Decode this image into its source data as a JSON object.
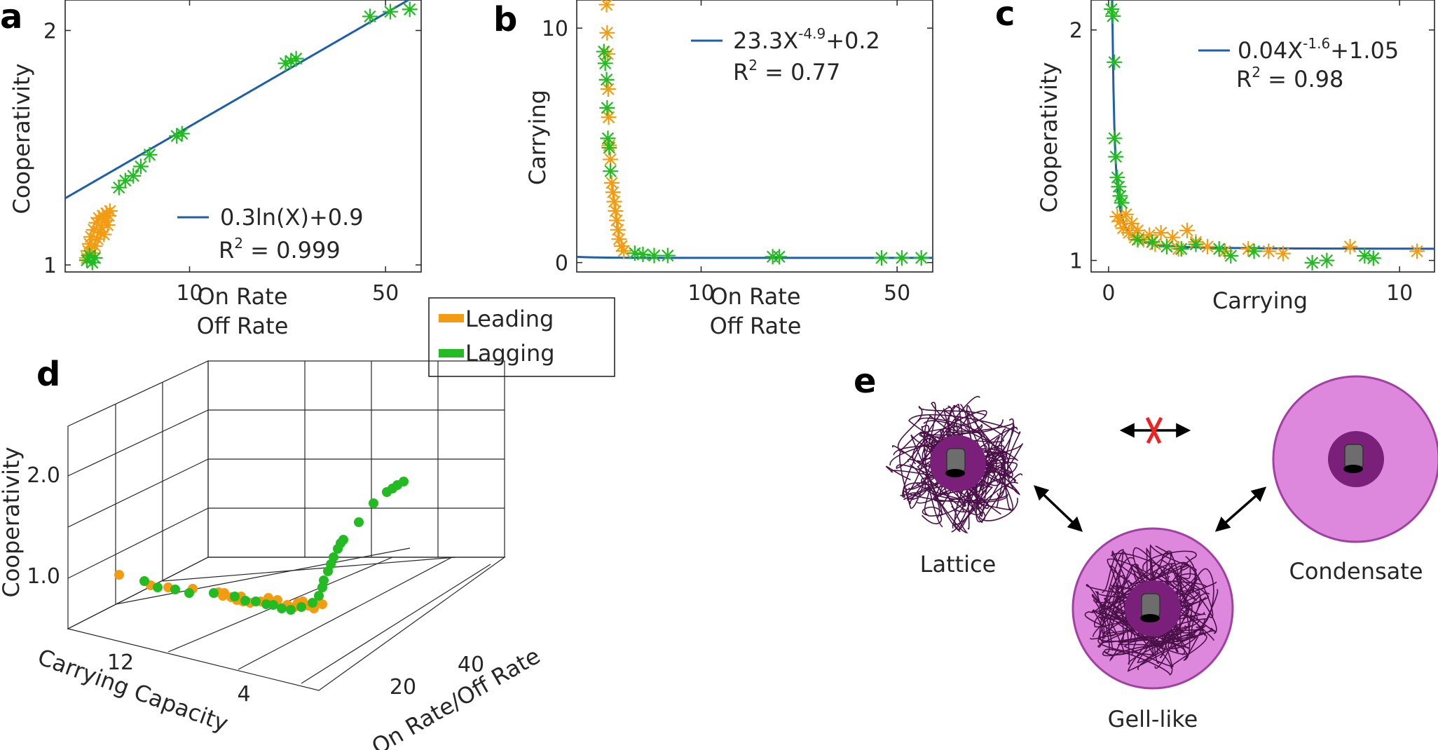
{
  "panels": {
    "a": "a",
    "b": "b",
    "c": "c",
    "d": "d",
    "e": "e"
  },
  "colors": {
    "leading": "#f39c12",
    "lagging": "#22bb22",
    "fit": "#1f5fa8",
    "purple_dark": "#7a1f7a",
    "purple_light": "#dd88dd",
    "red_x": "#ee2222"
  },
  "legend": {
    "leading_label": "Leading",
    "lagging_label": "Lagging"
  },
  "chart_data": [
    {
      "id": "a",
      "type": "scatter",
      "xlabel_line1": "On Rate",
      "xlabel_line2": "Off Rate",
      "ylabel": "Cooperativity",
      "xscale": "log",
      "xlim": [
        3.6,
        67
      ],
      "ylim": [
        0.97,
        2.13
      ],
      "xticks": [
        {
          "v": 10,
          "label": "10"
        },
        {
          "v": 50,
          "label": "50"
        }
      ],
      "yticks": [
        {
          "v": 1,
          "label": "1"
        },
        {
          "v": 2,
          "label": "2"
        }
      ],
      "fit_label": "0.3ln(X)+0.9",
      "r2_label": "R",
      "r2_sup": "2",
      "r2_value": " = 0.999",
      "fit": {
        "kind": "log",
        "a": 0.3,
        "b": 0.9
      },
      "leading": {
        "x": [
          4.3,
          4.35,
          4.4,
          4.45,
          4.5,
          4.55,
          4.6,
          4.65,
          4.7,
          4.75,
          4.8,
          4.85,
          4.9,
          4.95,
          5.0,
          5.05,
          5.1,
          5.15,
          5.2
        ],
        "y": [
          1.03,
          1.06,
          1.09,
          1.12,
          1.05,
          1.15,
          1.08,
          1.18,
          1.11,
          1.2,
          1.14,
          1.16,
          1.21,
          1.13,
          1.19,
          1.22,
          1.17,
          1.21,
          1.23
        ]
      },
      "lagging": {
        "x": [
          4.3,
          4.4,
          4.5,
          4.6,
          5.6,
          5.9,
          6.3,
          6.7,
          7.2,
          9.0,
          9.4,
          22,
          23,
          24,
          44,
          52,
          61
        ],
        "y": [
          1.02,
          1.04,
          1.01,
          1.03,
          1.33,
          1.36,
          1.38,
          1.42,
          1.47,
          1.55,
          1.56,
          1.86,
          1.87,
          1.88,
          2.06,
          2.08,
          2.09
        ]
      }
    },
    {
      "id": "b",
      "type": "scatter",
      "xlabel_line1": "On Rate",
      "xlabel_line2": "Off Rate",
      "ylabel": "Carrying",
      "xscale": "log",
      "xlim": [
        3.6,
        67
      ],
      "ylim": [
        -0.4,
        11.2
      ],
      "xticks": [
        {
          "v": 10,
          "label": "10"
        },
        {
          "v": 50,
          "label": "50"
        }
      ],
      "yticks": [
        {
          "v": 0,
          "label": "0"
        },
        {
          "v": 10,
          "label": "10"
        }
      ],
      "fit_label": "23.3X",
      "fit_sup": "-4.9",
      "fit_suffix": "+0.2",
      "r2_label": "R",
      "r2_sup": "2",
      "r2_value": " = 0.77",
      "fit": {
        "kind": "power",
        "a": 23.3,
        "p": -4.9,
        "c": 0.2
      },
      "leading": {
        "x": [
          4.6,
          4.62,
          4.64,
          4.66,
          4.68,
          4.7,
          4.75,
          4.8,
          4.85,
          4.9,
          4.95,
          5.0,
          5.05,
          5.1,
          5.2,
          5.3
        ],
        "y": [
          11.0,
          9.8,
          8.9,
          7.4,
          6.2,
          5.0,
          4.4,
          3.4,
          3.0,
          2.6,
          2.2,
          1.8,
          1.4,
          1.0,
          0.7,
          0.5
        ]
      },
      "lagging": {
        "x": [
          4.5,
          4.55,
          4.6,
          4.62,
          4.65,
          4.7,
          4.75,
          5.8,
          6.2,
          6.8,
          7.6,
          18,
          19,
          44,
          52,
          61
        ],
        "y": [
          9.0,
          8.5,
          7.8,
          6.6,
          5.3,
          4.9,
          3.9,
          0.4,
          0.35,
          0.3,
          0.3,
          0.25,
          0.25,
          0.2,
          0.2,
          0.2
        ]
      }
    },
    {
      "id": "c",
      "type": "scatter",
      "xlabel": "Carrying",
      "ylabel": "Cooperativity",
      "xscale": "linear",
      "xlim": [
        -0.6,
        11.2
      ],
      "ylim": [
        0.95,
        2.13
      ],
      "xticks": [
        {
          "v": 0,
          "label": "0"
        },
        {
          "v": 10,
          "label": "10"
        }
      ],
      "yticks": [
        {
          "v": 1,
          "label": "1"
        },
        {
          "v": 2,
          "label": "2"
        }
      ],
      "fit_label": "0.04X",
      "fit_sup": "-1.6",
      "fit_suffix": "+1.05",
      "r2_label": "R",
      "r2_sup": "2",
      "r2_value": " = 0.98",
      "fit": {
        "kind": "power",
        "a": 0.04,
        "p": -1.6,
        "c": 1.05
      },
      "leading": {
        "x": [
          0.3,
          0.4,
          0.5,
          0.6,
          0.7,
          0.8,
          0.9,
          1.0,
          1.2,
          1.4,
          1.6,
          1.8,
          2.0,
          2.2,
          2.4,
          2.7,
          3.0,
          3.4,
          4.0,
          4.8,
          5.5,
          6.0,
          8.3,
          10.6
        ],
        "y": [
          1.19,
          1.17,
          1.14,
          1.2,
          1.12,
          1.16,
          1.1,
          1.13,
          1.09,
          1.11,
          1.07,
          1.12,
          1.06,
          1.1,
          1.05,
          1.13,
          1.08,
          1.06,
          1.04,
          1.05,
          1.04,
          1.03,
          1.06,
          1.04
        ]
      },
      "lagging": {
        "x": [
          0.1,
          0.15,
          0.2,
          0.2,
          0.25,
          0.3,
          0.35,
          0.4,
          0.45,
          1.0,
          1.5,
          2.0,
          2.5,
          3.0,
          3.8,
          4.2,
          5.0,
          7.0,
          7.5,
          8.8,
          9.1
        ],
        "y": [
          2.09,
          2.06,
          1.86,
          1.53,
          1.45,
          1.36,
          1.32,
          1.28,
          1.25,
          1.09,
          1.08,
          1.06,
          1.05,
          1.07,
          1.05,
          1.02,
          1.04,
          0.99,
          1.0,
          1.02,
          1.01
        ]
      }
    },
    {
      "id": "d",
      "type": "scatter3d",
      "xlabel": "Carrying Capacity",
      "ylabel": "On Rate/Off Rate",
      "zlabel": "Cooperativity",
      "xticks": [
        "12",
        "4"
      ],
      "yticks": [
        "20",
        "40"
      ],
      "zticks": [
        "1.0",
        "2.0"
      ]
    }
  ],
  "diagram": {
    "lattice_label": "Lattice",
    "condensate_label": "Condensate",
    "gell_label": "Gell-like"
  }
}
